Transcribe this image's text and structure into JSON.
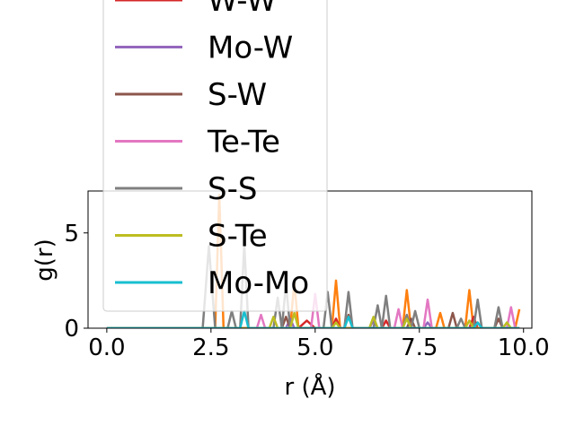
{
  "chart_data": {
    "type": "line",
    "xlabel": "r (Å)",
    "ylabel": "g(r)",
    "xlim": [
      -0.45,
      10.2
    ],
    "ylim": [
      0,
      7.2
    ],
    "xticks": [
      "0.0",
      "2.5",
      "5.0",
      "7.5",
      "10.0"
    ],
    "yticks": [
      "0",
      "5"
    ],
    "grid": false,
    "legend_position": "upper-left (overflowing above plot)",
    "series": [
      {
        "name": "W-W",
        "color": "#d62728",
        "points": [
          [
            0,
            0
          ],
          [
            4.6,
            0
          ],
          [
            4.8,
            0.4
          ],
          [
            5.0,
            0
          ],
          [
            5.4,
            0
          ],
          [
            5.5,
            0.5
          ],
          [
            5.6,
            0
          ],
          [
            6.6,
            0
          ],
          [
            6.7,
            0.4
          ],
          [
            6.8,
            0
          ],
          [
            8.7,
            0
          ],
          [
            8.8,
            0.6
          ],
          [
            8.9,
            0
          ],
          [
            9.9,
            0
          ]
        ]
      },
      {
        "name": "Mo-W",
        "color": "#9467bd",
        "points": [
          [
            0,
            0
          ],
          [
            4.3,
            0
          ],
          [
            4.4,
            0.5
          ],
          [
            4.5,
            0
          ],
          [
            6.3,
            0
          ],
          [
            6.4,
            0.4
          ],
          [
            6.5,
            0
          ],
          [
            7.6,
            0
          ],
          [
            7.7,
            0.3
          ],
          [
            7.8,
            0
          ],
          [
            9.9,
            0
          ]
        ]
      },
      {
        "name": "S-W",
        "color": "#8c564b",
        "points": [
          [
            0,
            0
          ],
          [
            4.2,
            0
          ],
          [
            4.3,
            0.6
          ],
          [
            4.4,
            0
          ],
          [
            5.7,
            0
          ],
          [
            5.8,
            0.7
          ],
          [
            5.9,
            0
          ],
          [
            7.2,
            0
          ],
          [
            7.3,
            0.5
          ],
          [
            7.4,
            0
          ],
          [
            8.2,
            0
          ],
          [
            8.3,
            0.8
          ],
          [
            8.4,
            0
          ],
          [
            9.3,
            0
          ],
          [
            9.4,
            0.5
          ],
          [
            9.5,
            0
          ],
          [
            9.9,
            0
          ]
        ]
      },
      {
        "name": "Te-Te",
        "color": "#e377c2",
        "points": [
          [
            0,
            0
          ],
          [
            3.6,
            0
          ],
          [
            3.7,
            0.7
          ],
          [
            3.8,
            0
          ],
          [
            4.9,
            0
          ],
          [
            5.0,
            1.8
          ],
          [
            5.1,
            0
          ],
          [
            6.9,
            0
          ],
          [
            7.0,
            1.0
          ],
          [
            7.1,
            0
          ],
          [
            7.6,
            0
          ],
          [
            7.7,
            1.5
          ],
          [
            7.8,
            0
          ],
          [
            9.6,
            0
          ],
          [
            9.7,
            1.1
          ],
          [
            9.8,
            0
          ],
          [
            9.9,
            0
          ]
        ]
      },
      {
        "name": "S-S",
        "color": "#7f7f7f",
        "points": [
          [
            0,
            0
          ],
          [
            2.3,
            0
          ],
          [
            2.45,
            4.3
          ],
          [
            2.6,
            0
          ],
          [
            2.9,
            0
          ],
          [
            3.0,
            0.9
          ],
          [
            3.1,
            0
          ],
          [
            3.2,
            0
          ],
          [
            3.3,
            4.4
          ],
          [
            3.4,
            0
          ],
          [
            4.0,
            0
          ],
          [
            4.1,
            1.6
          ],
          [
            4.2,
            0
          ],
          [
            4.3,
            2.3
          ],
          [
            4.4,
            0
          ],
          [
            5.2,
            0
          ],
          [
            5.3,
            1.9
          ],
          [
            5.4,
            0
          ],
          [
            5.7,
            0
          ],
          [
            5.8,
            1.9
          ],
          [
            5.9,
            0
          ],
          [
            6.4,
            0
          ],
          [
            6.5,
            1.2
          ],
          [
            6.6,
            0
          ],
          [
            6.7,
            1.7
          ],
          [
            6.8,
            0
          ],
          [
            7.1,
            0
          ],
          [
            7.2,
            0.7
          ],
          [
            7.3,
            0
          ],
          [
            7.4,
            0.9
          ],
          [
            7.5,
            0
          ],
          [
            8.4,
            0
          ],
          [
            8.5,
            0.5
          ],
          [
            8.6,
            0
          ],
          [
            8.8,
            0
          ],
          [
            8.9,
            1.5
          ],
          [
            9.0,
            0
          ],
          [
            9.3,
            0
          ],
          [
            9.4,
            1.1
          ],
          [
            9.5,
            0
          ],
          [
            9.9,
            0
          ]
        ]
      },
      {
        "name": "S-Te",
        "color": "#bcbd22",
        "points": [
          [
            0,
            0
          ],
          [
            3.9,
            0
          ],
          [
            4.0,
            0.6
          ],
          [
            4.1,
            0
          ],
          [
            4.4,
            0
          ],
          [
            4.5,
            0.8
          ],
          [
            4.6,
            0
          ],
          [
            5.4,
            0
          ],
          [
            5.5,
            0.3
          ],
          [
            5.6,
            0
          ],
          [
            6.3,
            0
          ],
          [
            6.4,
            0.6
          ],
          [
            6.5,
            0
          ],
          [
            7.1,
            0
          ],
          [
            7.2,
            0.5
          ],
          [
            7.3,
            0
          ],
          [
            8.6,
            0
          ],
          [
            8.7,
            0.4
          ],
          [
            8.8,
            0
          ],
          [
            9.5,
            0
          ],
          [
            9.6,
            0.3
          ],
          [
            9.7,
            0
          ],
          [
            9.9,
            0
          ]
        ]
      },
      {
        "name": "Mo-Mo",
        "color": "#17becf",
        "points": [
          [
            0,
            0
          ],
          [
            3.2,
            0
          ],
          [
            3.3,
            0.9
          ],
          [
            3.4,
            0
          ],
          [
            5.7,
            0
          ],
          [
            5.8,
            0.6
          ],
          [
            5.9,
            0
          ],
          [
            8.8,
            0
          ],
          [
            8.9,
            0.3
          ],
          [
            9.0,
            0
          ],
          [
            9.9,
            0
          ]
        ]
      }
    ],
    "unlabeled_series": [
      {
        "color": "#ff7f0e",
        "points": [
          [
            0,
            0
          ],
          [
            2.6,
            0
          ],
          [
            2.7,
            7.0
          ],
          [
            2.8,
            0
          ],
          [
            4.4,
            0
          ],
          [
            4.5,
            2.4
          ],
          [
            4.6,
            0
          ],
          [
            5.4,
            0
          ],
          [
            5.5,
            2.5
          ],
          [
            5.6,
            0
          ],
          [
            7.1,
            0
          ],
          [
            7.2,
            2.0
          ],
          [
            7.3,
            0
          ],
          [
            7.9,
            0
          ],
          [
            8.0,
            0.8
          ],
          [
            8.1,
            0
          ],
          [
            8.6,
            0
          ],
          [
            8.7,
            2.0
          ],
          [
            8.8,
            0
          ],
          [
            9.8,
            0
          ],
          [
            9.9,
            1.0
          ]
        ]
      }
    ]
  }
}
